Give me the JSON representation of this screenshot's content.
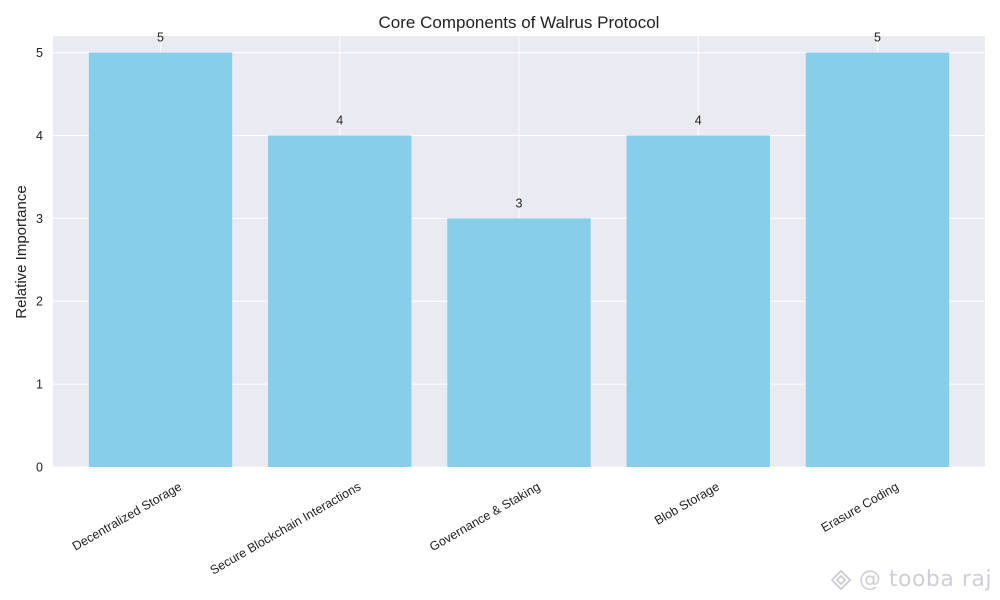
{
  "chart_data": {
    "type": "bar",
    "title": "Core Components of Walrus Protocol",
    "xlabel": "",
    "ylabel": "Relative Importance",
    "categories": [
      "Decentralized Storage",
      "Secure Blockchain Interactions",
      "Governance & Staking",
      "Blob Storage",
      "Erasure Coding"
    ],
    "values": [
      5,
      4,
      3,
      4,
      5
    ],
    "data_labels": [
      "5",
      "4",
      "3",
      "4",
      "5"
    ],
    "ylim": [
      0,
      5.2
    ],
    "yticks": [
      0,
      1,
      2,
      3,
      4,
      5
    ],
    "grid": true,
    "bar_color": "#87ceeb",
    "plot_background": "#eaeaf2"
  },
  "watermark": {
    "text": "@ tooba raj",
    "icon": "binance-logo-icon"
  }
}
